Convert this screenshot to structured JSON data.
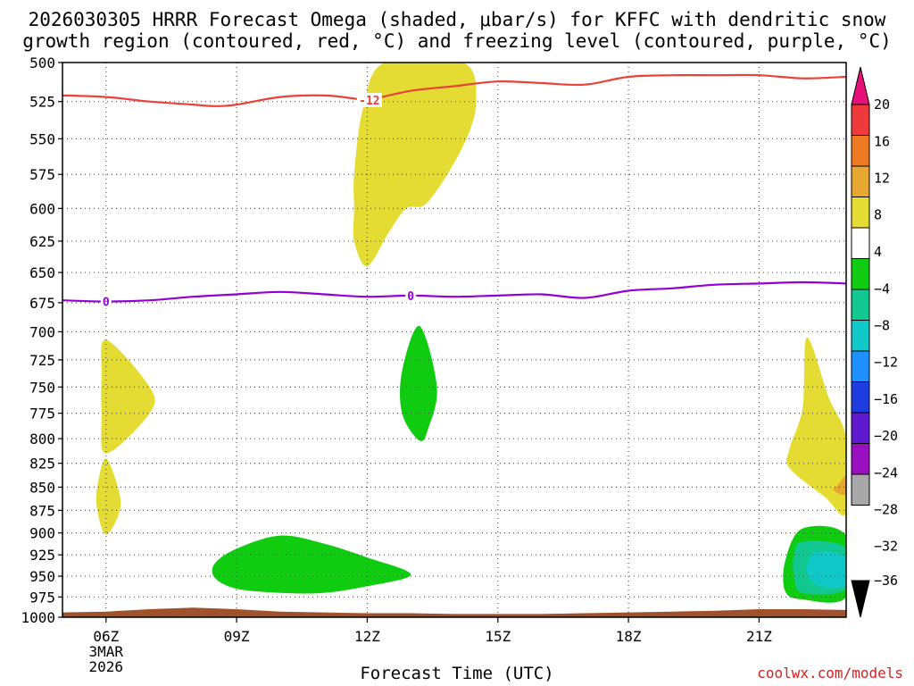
{
  "title": {
    "line1": "2026030305 HRRR Forecast Omega (shaded, μbar/s) for KFFC with dendritic snow",
    "line2": "growth region (contoured, red, °C) and freezing level (contoured, purple, °C)"
  },
  "credit": "coolwx.com/models",
  "colors": {
    "dgz_line": "#e8423a",
    "freezing_line": "#9400d3",
    "terrain": "#a0522d",
    "grid": "#555555"
  },
  "chart_data": {
    "type": "heatmap",
    "title": "2026030305 HRRR Forecast Omega (shaded, μbar/s) for KFFC with dendritic snow growth region (contoured, red, °C) and freezing level (contoured, purple, °C)",
    "xlabel": "Forecast Time (UTC)",
    "ylabel": "",
    "x_range_hours_utc": [
      5,
      23
    ],
    "y_range_hPa": [
      1000,
      500
    ],
    "y_scale": "log-pressure",
    "grid": true,
    "x_ticks": [
      {
        "hour": 6,
        "label": "06Z",
        "sub1": "3MAR",
        "sub2": "2026"
      },
      {
        "hour": 9,
        "label": "09Z"
      },
      {
        "hour": 12,
        "label": "12Z"
      },
      {
        "hour": 15,
        "label": "15Z"
      },
      {
        "hour": 18,
        "label": "18Z"
      },
      {
        "hour": 21,
        "label": "21Z"
      }
    ],
    "y_ticks": [
      500,
      525,
      550,
      575,
      600,
      625,
      650,
      675,
      700,
      725,
      750,
      775,
      800,
      825,
      850,
      875,
      900,
      925,
      950,
      975,
      1000
    ],
    "colorbar": {
      "labels": [
        "20",
        "16",
        "12",
        "8",
        "4",
        "−4",
        "−8",
        "−12",
        "−16",
        "−20",
        "−24",
        "−28",
        "−32",
        "−36"
      ],
      "bins": [
        {
          "range": [
            20,
            null
          ],
          "color": "#e8107a"
        },
        {
          "range": [
            16,
            20
          ],
          "color": "#ee3a3a"
        },
        {
          "range": [
            12,
            16
          ],
          "color": "#ee7a22"
        },
        {
          "range": [
            8,
            12
          ],
          "color": "#e6a830"
        },
        {
          "range": [
            4,
            8
          ],
          "color": "#e4dc32"
        },
        {
          "range": [
            -4,
            4
          ],
          "color": "#ffffff"
        },
        {
          "range": [
            -8,
            -4
          ],
          "color": "#10cc10"
        },
        {
          "range": [
            -12,
            -8
          ],
          "color": "#10c890"
        },
        {
          "range": [
            -16,
            -12
          ],
          "color": "#10c8c8"
        },
        {
          "range": [
            -20,
            -16
          ],
          "color": "#1e90ff"
        },
        {
          "range": [
            -24,
            -20
          ],
          "color": "#1e3ce0"
        },
        {
          "range": [
            -28,
            -24
          ],
          "color": "#6018d0"
        },
        {
          "range": [
            -32,
            -28
          ],
          "color": "#9a10c0"
        },
        {
          "range": [
            -36,
            -32
          ],
          "color": "#a8a8a8"
        },
        {
          "range": [
            null,
            -36
          ],
          "color": "#000000"
        }
      ]
    },
    "contours": [
      {
        "name": "dendritic growth region",
        "value": -12,
        "label": "-12",
        "color": "#e8423a",
        "points": [
          [
            5,
            521
          ],
          [
            6,
            522
          ],
          [
            7,
            525
          ],
          [
            8,
            527
          ],
          [
            8.5,
            528
          ],
          [
            9,
            527
          ],
          [
            10,
            522
          ],
          [
            11,
            521
          ],
          [
            11.7,
            523
          ],
          [
            12,
            524
          ],
          [
            13,
            518
          ],
          [
            14,
            515
          ],
          [
            15,
            512
          ],
          [
            16,
            513
          ],
          [
            17,
            514
          ],
          [
            18,
            509
          ],
          [
            19,
            508
          ],
          [
            20,
            508
          ],
          [
            21,
            508
          ],
          [
            22,
            510
          ],
          [
            23,
            509
          ]
        ]
      },
      {
        "name": "freezing level",
        "value": 0,
        "label": "0",
        "color": "#9400d3",
        "points": [
          [
            5,
            673
          ],
          [
            6,
            674
          ],
          [
            7,
            673
          ],
          [
            8,
            670
          ],
          [
            9,
            668
          ],
          [
            10,
            666
          ],
          [
            11,
            668
          ],
          [
            12,
            670
          ],
          [
            13,
            669
          ],
          [
            14,
            670
          ],
          [
            15,
            669
          ],
          [
            16,
            668
          ],
          [
            17,
            671
          ],
          [
            18,
            665
          ],
          [
            19,
            663
          ],
          [
            20,
            660
          ],
          [
            21,
            659
          ],
          [
            22,
            658
          ],
          [
            23,
            659
          ]
        ]
      }
    ],
    "omega_regions": [
      {
        "bin": "4 to 8",
        "color": "#e4dc32",
        "points": [
          [
            11.7,
            575
          ],
          [
            11.9,
            530
          ],
          [
            12.4,
            500
          ],
          [
            14.2,
            500
          ],
          [
            14.5,
            525
          ],
          [
            14.2,
            555
          ],
          [
            13.4,
            595
          ],
          [
            12.9,
            600
          ],
          [
            12.5,
            618
          ],
          [
            12,
            645
          ],
          [
            11.7,
            625
          ],
          [
            11.7,
            600
          ]
        ]
      },
      {
        "bin": "4 to 8",
        "color": "#e4dc32",
        "points": [
          [
            6,
            707
          ],
          [
            7,
            750
          ],
          [
            7,
            775
          ],
          [
            6,
            815
          ],
          [
            5.9,
            775
          ],
          [
            5.9,
            740
          ]
        ]
      },
      {
        "bin": "4 to 8",
        "color": "#e4dc32",
        "points": [
          [
            6,
            820
          ],
          [
            6.3,
            855
          ],
          [
            6.3,
            878
          ],
          [
            6,
            902
          ],
          [
            5.8,
            875
          ],
          [
            5.8,
            850
          ]
        ]
      },
      {
        "bin": "4 to 8",
        "color": "#e4dc32",
        "points": [
          [
            22.1,
            705
          ],
          [
            22.6,
            760
          ],
          [
            23,
            800
          ],
          [
            23,
            878
          ],
          [
            22.5,
            860
          ],
          [
            21.7,
            830
          ],
          [
            21.7,
            810
          ],
          [
            22,
            770
          ]
        ]
      },
      {
        "bin": "8 to 12",
        "color": "#e6a830",
        "points": [
          [
            22.8,
            848
          ],
          [
            23,
            838
          ],
          [
            23,
            858
          ],
          [
            22.7,
            853
          ]
        ]
      },
      {
        "bin": "-8 to -4",
        "color": "#10cc10",
        "points": [
          [
            13.2,
            695
          ],
          [
            13.6,
            750
          ],
          [
            13.4,
            790
          ],
          [
            13.2,
            802
          ],
          [
            12.8,
            775
          ],
          [
            12.8,
            735
          ]
        ]
      },
      {
        "bin": "-8 to -4",
        "color": "#10cc10",
        "points": [
          [
            8.5,
            935
          ],
          [
            9,
            918
          ],
          [
            10,
            903
          ],
          [
            11,
            912
          ],
          [
            12,
            928
          ],
          [
            13,
            948
          ],
          [
            12,
            962
          ],
          [
            11,
            970
          ],
          [
            10,
            970
          ],
          [
            9,
            965
          ],
          [
            8.5,
            952
          ]
        ]
      },
      {
        "bin": "-8 to -4",
        "color": "#10cc10",
        "points": [
          [
            22,
            895
          ],
          [
            23,
            903
          ],
          [
            23,
            975
          ],
          [
            22,
            978
          ],
          [
            21.6,
            968
          ],
          [
            21.6,
            932
          ]
        ]
      },
      {
        "bin": "-12 to -8",
        "color": "#10c890",
        "points": [
          [
            22,
            910
          ],
          [
            23,
            917
          ],
          [
            23,
            965
          ],
          [
            22,
            970
          ],
          [
            21.8,
            950
          ],
          [
            21.8,
            925
          ]
        ]
      },
      {
        "bin": "-16 to -12",
        "color": "#10c8c8",
        "points": [
          [
            22.3,
            922
          ],
          [
            23,
            928
          ],
          [
            23,
            960
          ],
          [
            22.4,
            962
          ],
          [
            22.1,
            944
          ]
        ]
      }
    ],
    "terrain": {
      "name": "surface",
      "color": "#a0522d",
      "points": [
        [
          5,
          994
        ],
        [
          6,
          993
        ],
        [
          7,
          990
        ],
        [
          8,
          988
        ],
        [
          9,
          990
        ],
        [
          10,
          993
        ],
        [
          11,
          994
        ],
        [
          12,
          995
        ],
        [
          13,
          995
        ],
        [
          14,
          996
        ],
        [
          15,
          996
        ],
        [
          16,
          996
        ],
        [
          17,
          995
        ],
        [
          18,
          994
        ],
        [
          19,
          993
        ],
        [
          20,
          992
        ],
        [
          21,
          990
        ],
        [
          22,
          990
        ],
        [
          23,
          991
        ]
      ]
    }
  }
}
